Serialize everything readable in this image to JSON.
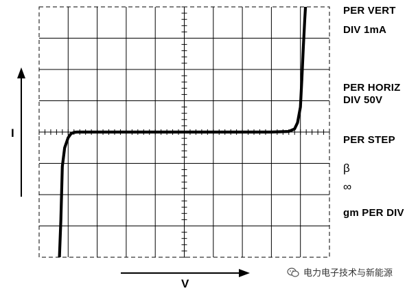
{
  "chart_data": {
    "type": "line",
    "x_axis_label": "V",
    "y_axis_label": "I",
    "divisions": {
      "horizontal": 10,
      "vertical": 8
    },
    "scale": {
      "per_vert_div": "1mA",
      "per_horiz_div": "50V"
    },
    "series": [
      {
        "x_div": [
          -4.3,
          -4.25,
          -4.2,
          -4.12,
          -4.0,
          -3.9,
          -3.8,
          -3.7,
          -3.5,
          -3.0,
          0.0,
          3.0,
          3.6,
          3.8,
          3.9,
          4.0,
          4.05,
          4.1,
          4.15,
          4.2,
          4.25
        ],
        "y_div": [
          -4.0,
          -2.8,
          -1.1,
          -0.5,
          -0.18,
          -0.05,
          -0.01,
          0.0,
          0.0,
          0.0,
          0.0,
          0.0,
          0.02,
          0.1,
          0.3,
          0.8,
          1.7,
          2.7,
          3.6,
          4.4,
          5.0
        ]
      }
    ]
  },
  "labels": {
    "per_vert": "PER VERT",
    "div_vert": "DIV 1mA",
    "per_horiz": "PER HORIZ",
    "div_horiz": "DIV 50V",
    "per_step": "PER STEP",
    "beta": "β",
    "infinity": "∞",
    "gm": "gm PER DIV"
  },
  "watermark": {
    "text": "电力电子技术与新能源"
  }
}
